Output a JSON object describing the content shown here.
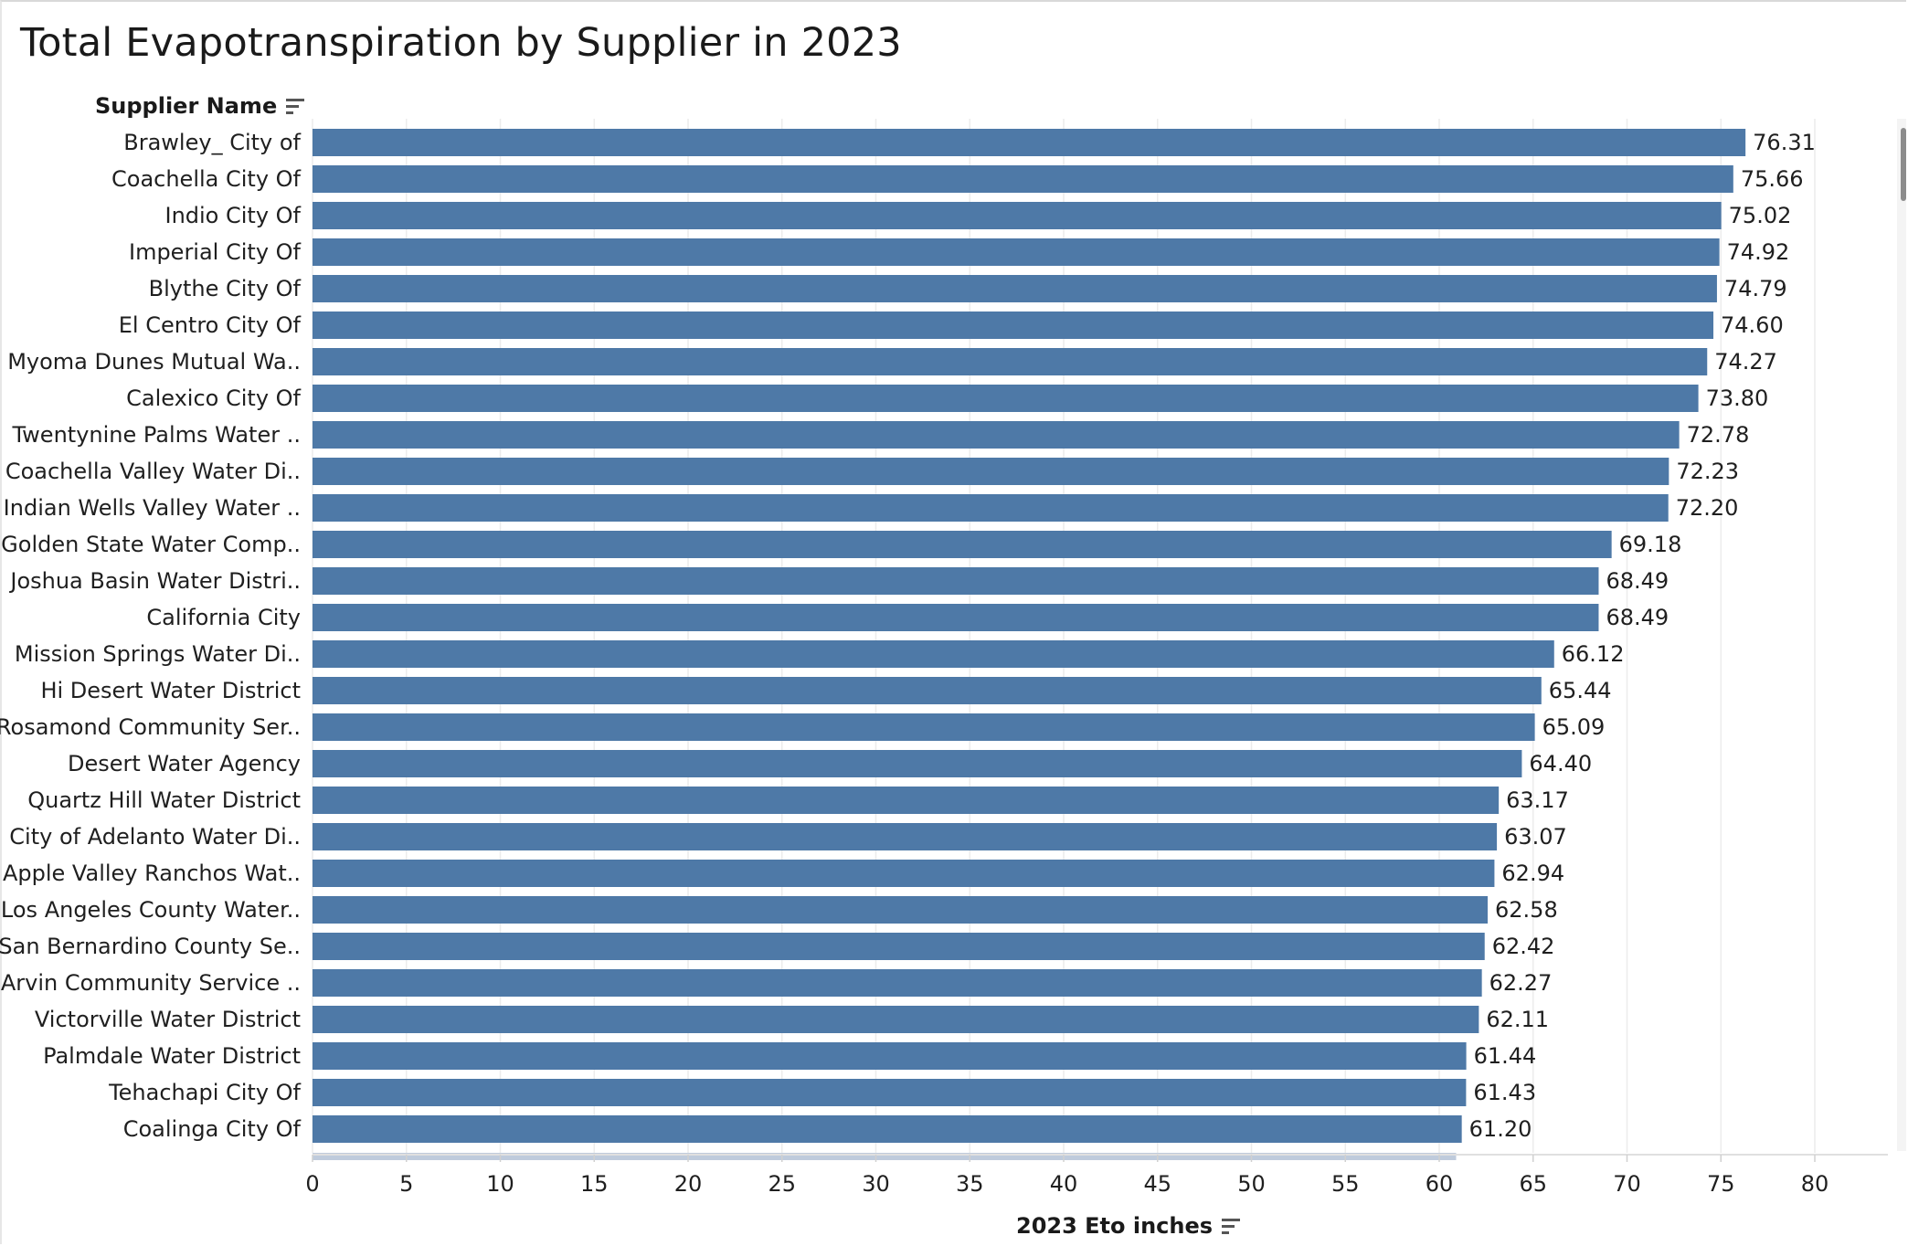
{
  "chart_data": {
    "type": "bar",
    "orientation": "horizontal",
    "title": "Total Evapotranspiration by Supplier in 2023",
    "ylabel": "Supplier Name",
    "xlabel": "2023 Eto inches",
    "xlim": [
      0,
      84
    ],
    "xticks": [
      0,
      5,
      10,
      15,
      20,
      25,
      30,
      35,
      40,
      45,
      50,
      55,
      60,
      65,
      70,
      75,
      80
    ],
    "grid": "vertical",
    "bar_color": "#4e79a7",
    "categories": [
      "Brawley_ City of",
      "Coachella City Of",
      "Indio City Of",
      "Imperial City Of",
      "Blythe City Of",
      "El Centro City Of",
      "Myoma Dunes Mutual Wa..",
      "Calexico City Of",
      "Twentynine Palms Water ..",
      "Coachella Valley Water Di..",
      "Indian Wells Valley Water ..",
      "Golden State Water Comp..",
      "Joshua Basin Water Distri..",
      "California City",
      "Mission Springs Water Di..",
      "Hi Desert Water District",
      "Rosamond Community Ser..",
      "Desert Water Agency",
      "Quartz Hill Water District",
      "City of Adelanto Water Di..",
      "Apple Valley Ranchos Wat..",
      "Los Angeles County Water..",
      "San Bernardino County Se..",
      "Arvin Community Service ..",
      "Victorville Water District",
      "Palmdale Water District",
      "Tehachapi City Of",
      "Coalinga City Of"
    ],
    "values": [
      76.31,
      75.66,
      75.02,
      74.92,
      74.79,
      74.6,
      74.27,
      73.8,
      72.78,
      72.23,
      72.2,
      69.18,
      68.49,
      68.49,
      66.12,
      65.44,
      65.09,
      64.4,
      63.17,
      63.07,
      62.94,
      62.58,
      62.42,
      62.27,
      62.11,
      61.44,
      61.43,
      61.2
    ],
    "value_labels": [
      "76.31",
      "75.66",
      "75.02",
      "74.92",
      "74.79",
      "74.60",
      "74.27",
      "73.80",
      "72.78",
      "72.23",
      "72.20",
      "69.18",
      "68.49",
      "68.49",
      "66.12",
      "65.44",
      "65.09",
      "64.40",
      "63.17",
      "63.07",
      "62.94",
      "62.58",
      "62.42",
      "62.27",
      "62.11",
      "61.44",
      "61.43",
      "61.20"
    ]
  }
}
